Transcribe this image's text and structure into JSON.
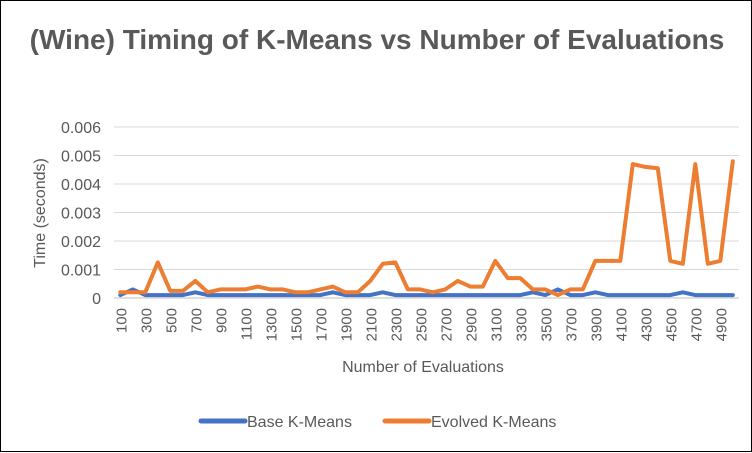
{
  "chart_data": {
    "type": "line",
    "title": "(Wine) Timing of K-Means vs Number of Evaluations",
    "xlabel": "Number of Evaluations",
    "ylabel": "Time (seconds)",
    "ylim": [
      0,
      0.006
    ],
    "yticks": [
      "0",
      "0.001",
      "0.002",
      "0.003",
      "0.004",
      "0.005",
      "0.006"
    ],
    "grid": true,
    "legend_position": "bottom",
    "x": [
      100,
      200,
      300,
      400,
      500,
      600,
      700,
      800,
      900,
      1000,
      1100,
      1200,
      1300,
      1400,
      1500,
      1600,
      1700,
      1800,
      1900,
      2000,
      2100,
      2200,
      2300,
      2400,
      2500,
      2600,
      2700,
      2800,
      2900,
      3000,
      3100,
      3200,
      3300,
      3400,
      3500,
      3600,
      3700,
      3800,
      3900,
      4000,
      4100,
      4200,
      4300,
      4400,
      4500,
      4600,
      4700,
      4800,
      4900,
      5000
    ],
    "xtick_labels": [
      "100",
      "300",
      "500",
      "700",
      "900",
      "1100",
      "1300",
      "1500",
      "1700",
      "1900",
      "2100",
      "2300",
      "2500",
      "2700",
      "2900",
      "3100",
      "3300",
      "3500",
      "3700",
      "3900",
      "4100",
      "4300",
      "4500",
      "4700",
      "4900"
    ],
    "series": [
      {
        "name": "Base K-Means",
        "color": "#4472C4",
        "values": [
          0.0001,
          0.0003,
          0.0001,
          0.0001,
          0.0001,
          0.0001,
          0.0002,
          0.0001,
          0.0001,
          0.0001,
          0.0001,
          0.0001,
          0.0001,
          0.0001,
          0.0001,
          0.0001,
          0.0001,
          0.0002,
          0.0001,
          0.0001,
          0.0001,
          0.0002,
          0.0001,
          0.0001,
          0.0001,
          0.0001,
          0.0001,
          0.0001,
          0.0001,
          0.0001,
          0.0001,
          0.0001,
          0.0001,
          0.0002,
          0.0001,
          0.0003,
          0.0001,
          0.0001,
          0.0002,
          0.0001,
          0.0001,
          0.0001,
          0.0001,
          0.0001,
          0.0001,
          0.0002,
          0.0001,
          0.0001,
          0.0001,
          0.0001
        ]
      },
      {
        "name": "Evolved K-Means",
        "color": "#ED7D31",
        "values": [
          0.0002,
          0.0002,
          0.0002,
          0.00125,
          0.00025,
          0.00025,
          0.0006,
          0.0002,
          0.0003,
          0.0003,
          0.0003,
          0.0004,
          0.0003,
          0.0003,
          0.0002,
          0.0002,
          0.0003,
          0.0004,
          0.0002,
          0.0002,
          0.0006,
          0.0012,
          0.00125,
          0.0003,
          0.0003,
          0.0002,
          0.0003,
          0.0006,
          0.0004,
          0.0004,
          0.0013,
          0.0007,
          0.0007,
          0.0003,
          0.0003,
          0.0001,
          0.0003,
          0.0003,
          0.0013,
          0.0013,
          0.0013,
          0.0047,
          0.0046,
          0.00455,
          0.0013,
          0.0012,
          0.0047,
          0.0012,
          0.0013,
          0.0048
        ]
      }
    ]
  }
}
